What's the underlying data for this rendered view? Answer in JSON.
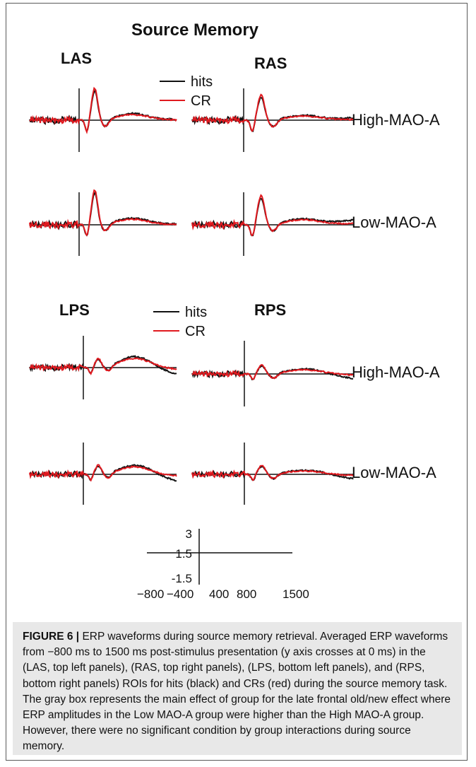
{
  "figure": {
    "title": "Source Memory",
    "panels": [
      {
        "label": "LAS"
      },
      {
        "label": "RAS"
      },
      {
        "label": "LPS"
      },
      {
        "label": "RPS"
      }
    ],
    "groups": [
      "High-MAO-A",
      "Low-MAO-A"
    ],
    "legend": [
      {
        "name": "hits",
        "color": "#111111"
      },
      {
        "name": "CR",
        "color": "#e0191f"
      }
    ],
    "scale": {
      "y_ticks": [
        "3",
        "1.5",
        "-1.5"
      ],
      "x_ticks": [
        "−800",
        "−400",
        "400",
        "800",
        "1500"
      ]
    }
  },
  "caption": {
    "label": "FIGURE 6 |",
    "text": " ERP waveforms during source memory retrieval. Averaged ERP waveforms from −800 ms to 1500 ms post-stimulus presentation (y axis crosses at 0 ms) in the (LAS, top left panels), (RAS, top right panels), (LPS, bottom left panels), and (RPS, bottom right panels) ROIs for hits (black) and CRs (red) during the source memory task. The gray box represents the main effect of group for the late frontal old/new effect where ERP amplitudes in the Low MAO-A group were higher than the High MAO-A group. However, there were no significant condition by group interactions during source memory."
  },
  "chart_data": {
    "type": "line",
    "title": "Source Memory",
    "xlabel": "",
    "ylabel": "",
    "x_ticks": [
      -800,
      -400,
      400,
      800,
      1500
    ],
    "y_ticks": [
      3,
      1.5,
      -1.5
    ],
    "legend": [
      "hits",
      "CR"
    ]
  }
}
